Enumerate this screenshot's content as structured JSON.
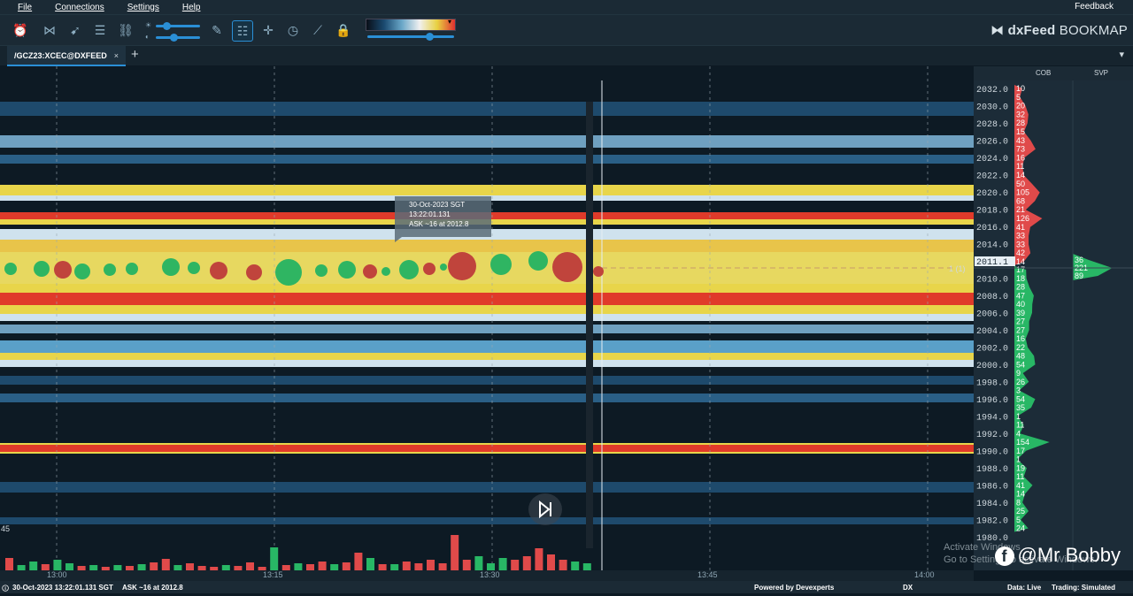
{
  "menu": {
    "items": [
      "File",
      "Connections",
      "Settings",
      "Help"
    ],
    "feedback": "Feedback"
  },
  "brand": {
    "name_bold": "dxFeed",
    "name": " BOOKMAP"
  },
  "tab": {
    "label": "/GCZ23:XCEC@DXFEED",
    "close": "×",
    "add": "+",
    "menu": "▾"
  },
  "columns": {
    "cob": "COB",
    "svp": "SVP"
  },
  "tooltip": {
    "line1": "30-Oct-2023 SGT",
    "line2": "13:22:01.131",
    "line3": "ASK ~16 at 2012.8"
  },
  "volume_label": "45",
  "last_trade_label": "1 (1)",
  "chart_data": {
    "type": "heatmap",
    "price_axis": [
      "2032.0",
      "2030.0",
      "2028.0",
      "2026.0",
      "2024.0",
      "2022.0",
      "2020.0",
      "2018.0",
      "2016.0",
      "2014.0",
      "2011.1",
      "2010.0",
      "2008.0",
      "2006.0",
      "2004.0",
      "2002.0",
      "2000.0",
      "1998.0",
      "1996.0",
      "1994.0",
      "1992.0",
      "1990.0",
      "1988.0",
      "1986.0",
      "1984.0",
      "1982.0",
      "1980.0"
    ],
    "time_axis": [
      "13:00",
      "13:15",
      "13:30",
      "13:45",
      "14:00"
    ],
    "cob_ask": [
      "10",
      "5",
      "20",
      "32",
      "28",
      "15",
      "43",
      "73",
      "16",
      "11",
      "14",
      "50",
      "105",
      "68",
      "21",
      "126",
      "41",
      "33",
      "33",
      "42",
      "14"
    ],
    "cob_bid": [
      "17",
      "18",
      "28",
      "47",
      "40",
      "39",
      "27",
      "27",
      "16",
      "22",
      "48",
      "54",
      "9",
      "26",
      "3",
      "54",
      "35",
      "1",
      "11",
      "4",
      "154",
      "17",
      "1",
      "19",
      "11",
      "41",
      "14",
      "8",
      "25",
      "5",
      "24"
    ],
    "svp": [
      "36",
      "221",
      "89"
    ],
    "volume_bars": [
      {
        "v": 14,
        "side": "sell"
      },
      {
        "v": 6,
        "side": "buy"
      },
      {
        "v": 10,
        "side": "buy"
      },
      {
        "v": 7,
        "side": "sell"
      },
      {
        "v": 12,
        "side": "buy"
      },
      {
        "v": 8,
        "side": "buy"
      },
      {
        "v": 5,
        "side": "sell"
      },
      {
        "v": 6,
        "side": "buy"
      },
      {
        "v": 4,
        "side": "sell"
      },
      {
        "v": 6,
        "side": "buy"
      },
      {
        "v": 5,
        "side": "sell"
      },
      {
        "v": 7,
        "side": "buy"
      },
      {
        "v": 9,
        "side": "sell"
      },
      {
        "v": 13,
        "side": "sell"
      },
      {
        "v": 6,
        "side": "buy"
      },
      {
        "v": 8,
        "side": "sell"
      },
      {
        "v": 5,
        "side": "sell"
      },
      {
        "v": 4,
        "side": "sell"
      },
      {
        "v": 6,
        "side": "buy"
      },
      {
        "v": 5,
        "side": "sell"
      },
      {
        "v": 9,
        "side": "sell"
      },
      {
        "v": 4,
        "side": "sell"
      },
      {
        "v": 26,
        "side": "buy"
      },
      {
        "v": 6,
        "side": "sell"
      },
      {
        "v": 8,
        "side": "buy"
      },
      {
        "v": 7,
        "side": "sell"
      },
      {
        "v": 10,
        "side": "sell"
      },
      {
        "v": 7,
        "side": "buy"
      },
      {
        "v": 9,
        "side": "sell"
      },
      {
        "v": 20,
        "side": "sell"
      },
      {
        "v": 14,
        "side": "buy"
      },
      {
        "v": 7,
        "side": "sell"
      },
      {
        "v": 7,
        "side": "buy"
      },
      {
        "v": 10,
        "side": "sell"
      },
      {
        "v": 8,
        "side": "sell"
      },
      {
        "v": 12,
        "side": "sell"
      },
      {
        "v": 8,
        "side": "sell"
      },
      {
        "v": 40,
        "side": "sell"
      },
      {
        "v": 12,
        "side": "sell"
      },
      {
        "v": 16,
        "side": "buy"
      },
      {
        "v": 8,
        "side": "buy"
      },
      {
        "v": 14,
        "side": "buy"
      },
      {
        "v": 12,
        "side": "sell"
      },
      {
        "v": 16,
        "side": "sell"
      },
      {
        "v": 25,
        "side": "sell"
      },
      {
        "v": 18,
        "side": "sell"
      },
      {
        "v": 12,
        "side": "sell"
      },
      {
        "v": 10,
        "side": "buy"
      },
      {
        "v": 8,
        "side": "buy"
      }
    ]
  },
  "status": {
    "left": "30-Oct-2023 13:22:01.131 SGT",
    "ask": "ASK ~16 at 2012.8",
    "powered": "Powered by Devexperts",
    "dx": "DX",
    "data": "Data: Live",
    "trading": "Trading: Simulated"
  },
  "overlay": {
    "watermark": "@Mr Bobby",
    "activate_1": "Activate Windows",
    "activate_2": "Go to Settings to activate Windows."
  },
  "colors": {
    "ask": "#e04a4a",
    "bid": "#28b765",
    "accent": "#2a8fd6",
    "background": "#0d1a24"
  }
}
